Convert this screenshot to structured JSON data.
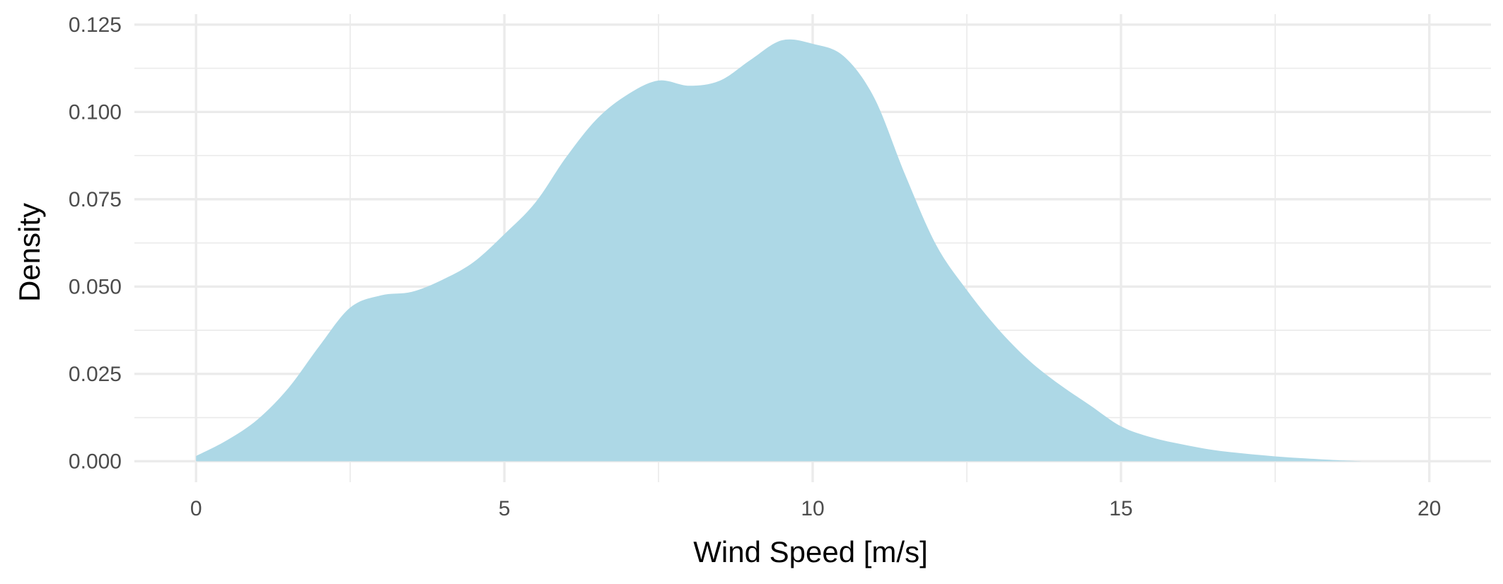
{
  "chart_data": {
    "type": "area",
    "title": "",
    "xlabel": "Wind Speed [m/s]",
    "ylabel": "Density",
    "xlim": [
      -1,
      21
    ],
    "ylim": [
      -0.006,
      0.128
    ],
    "x_ticks": [
      0,
      5,
      10,
      15,
      20
    ],
    "x_tick_labels": [
      "0",
      "5",
      "10",
      "15",
      "20"
    ],
    "y_ticks": [
      0,
      0.025,
      0.05,
      0.075,
      0.1,
      0.125
    ],
    "y_tick_labels": [
      "0.000",
      "0.025",
      "0.050",
      "0.075",
      "0.100",
      "0.125"
    ],
    "grid": true,
    "legend": "none",
    "fill_color": "#add8e6",
    "series": [
      {
        "x": [
          0,
          0.5,
          1,
          1.5,
          2,
          2.5,
          3,
          3.5,
          4,
          4.5,
          5,
          5.5,
          6,
          6.5,
          7,
          7.5,
          8,
          8.5,
          9,
          9.5,
          10,
          10.5,
          11,
          11.5,
          12,
          12.5,
          13,
          13.5,
          14,
          14.5,
          15,
          15.5,
          16,
          16.5,
          17,
          17.5,
          18,
          18.5,
          18.9
        ],
        "y": [
          0.0015,
          0.006,
          0.012,
          0.021,
          0.033,
          0.044,
          0.0475,
          0.0485,
          0.052,
          0.057,
          0.065,
          0.074,
          0.087,
          0.098,
          0.105,
          0.109,
          0.1075,
          0.109,
          0.115,
          0.1205,
          0.1195,
          0.116,
          0.104,
          0.082,
          0.062,
          0.049,
          0.038,
          0.029,
          0.022,
          0.016,
          0.01,
          0.0068,
          0.0048,
          0.0032,
          0.0022,
          0.0014,
          0.0008,
          0.0003,
          0
        ]
      }
    ]
  }
}
